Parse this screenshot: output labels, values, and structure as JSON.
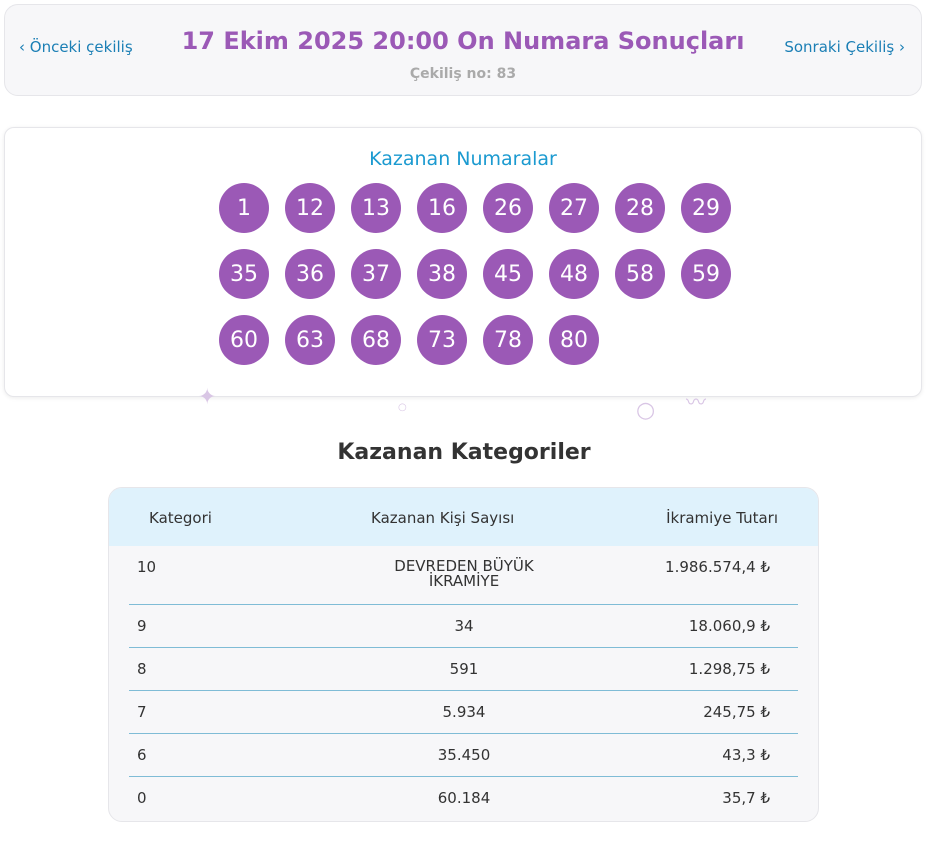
{
  "header": {
    "prev": "‹ Önceki çekiliş",
    "next": "Sonraki Çekiliş ›",
    "title": "17 Ekim 2025 20:00 On Numara Sonuçları",
    "draw_no": "Çekiliş no: 83"
  },
  "winning": {
    "title": "Kazanan Numaralar",
    "numbers": [
      "1",
      "12",
      "13",
      "16",
      "26",
      "27",
      "28",
      "29",
      "35",
      "36",
      "37",
      "38",
      "45",
      "48",
      "58",
      "59",
      "60",
      "63",
      "68",
      "73",
      "78",
      "80"
    ]
  },
  "categories": {
    "title": "Kazanan Kategoriler",
    "headers": [
      "Kategori",
      "Kazanan Kişi Sayısı",
      "İkramiye Tutarı"
    ],
    "rows": [
      [
        "10",
        "DEVREDEN BÜYÜK İKRAMİYE",
        "1.986.574,4 ₺"
      ],
      [
        "9",
        "34",
        "18.060,9 ₺"
      ],
      [
        "8",
        "591",
        "1.298,75 ₺"
      ],
      [
        "7",
        "5.934",
        "245,75 ₺"
      ],
      [
        "6",
        "35.450",
        "43,3 ₺"
      ],
      [
        "0",
        "60.184",
        "35,7 ₺"
      ]
    ]
  },
  "colors": {
    "accent": "#9b59b6",
    "link": "#1b7fb5",
    "header_bg": "#dff2fc"
  }
}
